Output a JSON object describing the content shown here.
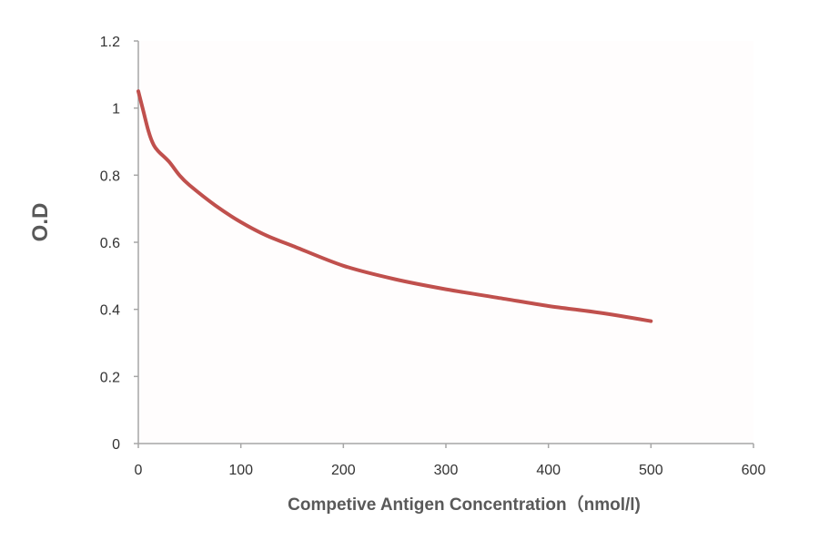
{
  "chart_data": {
    "type": "line",
    "title": "",
    "xlabel": "Competive Antigen Concentration（nmol/l)",
    "ylabel": "O.D",
    "xlim": [
      0,
      600
    ],
    "ylim": [
      0,
      1.2
    ],
    "xticks": [
      0,
      100,
      200,
      300,
      400,
      500,
      600
    ],
    "yticks": [
      0,
      0.2,
      0.4,
      0.6,
      0.8,
      1,
      1.2
    ],
    "xtick_labels": [
      "0",
      "100",
      "200",
      "300",
      "400",
      "500",
      "600"
    ],
    "ytick_labels": [
      "0",
      "0.2",
      "0.4",
      "0.6",
      "0.8",
      "1",
      "1.2"
    ],
    "grid": false,
    "legend": "none",
    "series": [
      {
        "color": "#c0504d",
        "x": [
          0,
          5,
          10,
          15,
          20,
          30,
          40,
          50,
          75,
          100,
          125,
          150,
          200,
          250,
          300,
          350,
          400,
          450,
          500
        ],
        "y": [
          1.05,
          0.99,
          0.93,
          0.89,
          0.87,
          0.84,
          0.8,
          0.77,
          0.71,
          0.66,
          0.62,
          0.59,
          0.53,
          0.49,
          0.46,
          0.435,
          0.41,
          0.39,
          0.365
        ]
      }
    ]
  }
}
